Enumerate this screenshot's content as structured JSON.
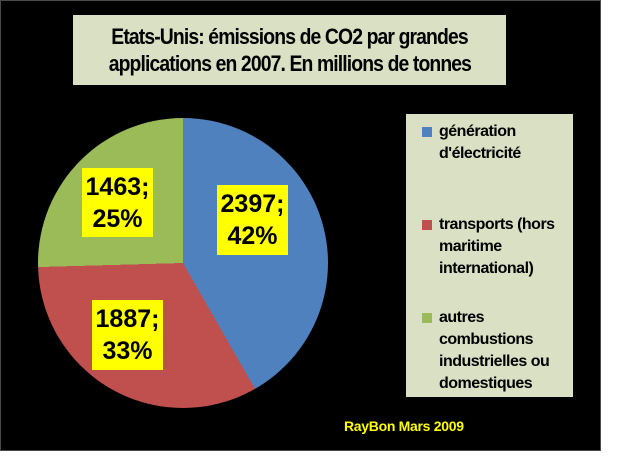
{
  "title": {
    "line1": "Etats-Unis: émissions de CO2  par grandes",
    "line2": "applications en 2007. En millions de tonnes"
  },
  "credit_text": "RayBon Mars 2009",
  "colors": {
    "chart_background": "#000000",
    "panel_background": "#d9e0c3",
    "label_background": "#ffff00",
    "credit_text": "#ffff00",
    "slice_blue": "#4e81bd",
    "slice_red": "#c0504d",
    "slice_green": "#9bbb59"
  },
  "chart_data": {
    "type": "pie",
    "title": "Etats-Unis: émissions de CO2 par grandes applications en 2007. En millions de tonnes",
    "unit": "millions de tonnes",
    "categories": [
      "génération d'électricité",
      "transports (hors maritime international)",
      "autres combustions industrielles ou domestiques"
    ],
    "values": [
      2397,
      1887,
      1463
    ],
    "percents": [
      42,
      33,
      25
    ],
    "colors": [
      "#4e81bd",
      "#c0504d",
      "#9bbb59"
    ],
    "start_angle_deg": 0,
    "direction": "clockwise",
    "legend_position": "right",
    "data_labels": "value; percent"
  },
  "pie_labels": {
    "blue": {
      "value_text": "2397;",
      "pct_text": "42%"
    },
    "red": {
      "value_text": "1887;",
      "pct_text": "33%"
    },
    "green": {
      "value_text": "1463;",
      "pct_text": "25%"
    }
  },
  "legend": {
    "items": [
      {
        "label": "génération d'électricité",
        "color": "#4e81bd"
      },
      {
        "label": "transports (hors maritime international)",
        "color": "#c0504d"
      },
      {
        "label": "autres combustions industrielles ou domestiques",
        "color": "#9bbb59"
      }
    ]
  }
}
